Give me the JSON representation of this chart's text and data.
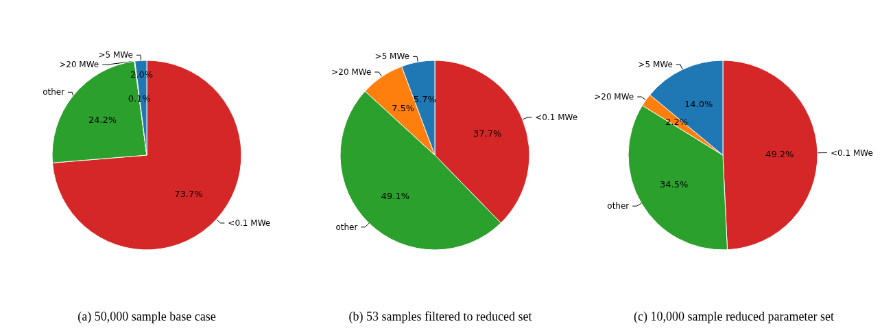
{
  "chart_data": [
    {
      "type": "pie",
      "title": "(a) 50,000 sample base case",
      "categories": [
        "<0.1 MWe",
        "other",
        ">20 MWe",
        ">5 MWe"
      ],
      "values": [
        73.7,
        24.2,
        0.1,
        2.0
      ],
      "colors": [
        "#d62728",
        "#2ca02c",
        "#ff7f0e",
        "#1f77b4"
      ],
      "value_labels": [
        "73.7%",
        "24.2%",
        "0.1%",
        "2.0%"
      ]
    },
    {
      "type": "pie",
      "title": "(b) 53 samples filtered to reduced set",
      "categories": [
        "<0.1 MWe",
        "other",
        ">20 MWe",
        ">5 MWe"
      ],
      "values": [
        37.7,
        49.1,
        7.5,
        5.7
      ],
      "colors": [
        "#d62728",
        "#2ca02c",
        "#ff7f0e",
        "#1f77b4"
      ],
      "value_labels": [
        "37.7%",
        "49.1%",
        "7.5%",
        "5.7%"
      ]
    },
    {
      "type": "pie",
      "title": "(c) 10,000 sample reduced parameter set",
      "categories": [
        "<0.1 MWe",
        "other",
        ">20 MWe",
        ">5 MWe"
      ],
      "values": [
        49.2,
        34.5,
        2.2,
        14.0
      ],
      "colors": [
        "#d62728",
        "#2ca02c",
        "#ff7f0e",
        "#1f77b4"
      ],
      "value_labels": [
        "49.2%",
        "34.5%",
        "2.2%",
        "14.0%"
      ]
    }
  ]
}
